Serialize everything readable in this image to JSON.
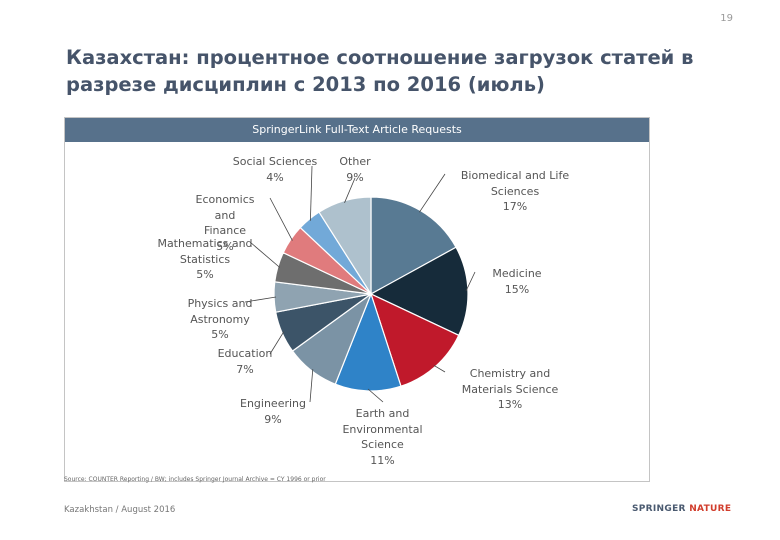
{
  "page_number": "19",
  "title": "Казахстан: процентное соотношение загрузок статей в разрезе дисциплин с 2013 по 2016 (июль)",
  "chart_data": {
    "type": "pie",
    "title": "SpringerLink Full-Text Article Requests",
    "slices": [
      {
        "label": "Biomedical and Life Sciences",
        "value": 17,
        "display": "Biomedical and Life\nSciences\n17%",
        "color": "#587a93"
      },
      {
        "label": "Medicine",
        "value": 15,
        "display": "Medicine\n15%",
        "color": "#162b3a"
      },
      {
        "label": "Chemistry and Materials Science",
        "value": 13,
        "display": "Chemistry and\nMaterials Science\n13%",
        "color": "#c0192b"
      },
      {
        "label": "Earth and Environmental Science",
        "value": 11,
        "display": "Earth and\nEnvironmental\nScience\n11%",
        "color": "#2f83c8"
      },
      {
        "label": "Engineering",
        "value": 9,
        "display": "Engineering\n9%",
        "color": "#7b93a5"
      },
      {
        "label": "Education",
        "value": 7,
        "display": "Education\n7%",
        "color": "#3c5468"
      },
      {
        "label": "Physics and Astronomy",
        "value": 5,
        "display": "Physics and\nAstronomy\n5%",
        "color": "#8fa3b1"
      },
      {
        "label": "Mathematics and Statistics",
        "value": 5,
        "display": "Mathematics and\nStatistics\n5%",
        "color": "#6e6e6e"
      },
      {
        "label": "Economics and Finance",
        "value": 5,
        "display": "Economics and\nFinance\n5%",
        "color": "#e07b7d"
      },
      {
        "label": "Social Sciences",
        "value": 4,
        "display": "Social Sciences\n4%",
        "color": "#72a9d8"
      },
      {
        "label": "Other",
        "value": 9,
        "display": "Other\n9%",
        "color": "#aec1cd"
      }
    ]
  },
  "source_note": "Source: COUNTER Reporting / BW; includes Springer Journal Archive = CY 1996 or prior",
  "footer_left": "Kazakhstan / August 2016",
  "logo": {
    "part1": "SPRINGER ",
    "part2": "NATURE"
  }
}
